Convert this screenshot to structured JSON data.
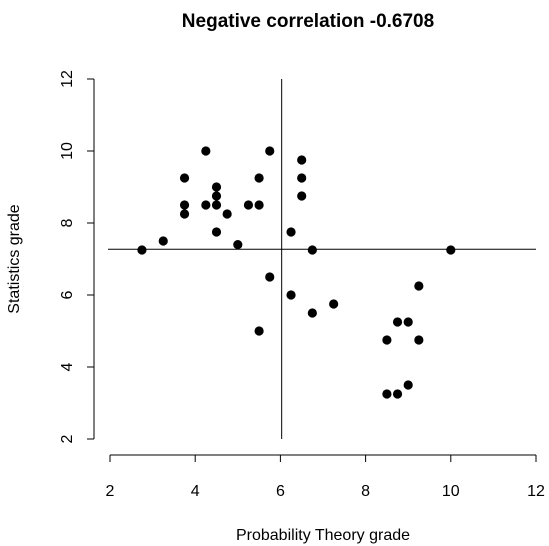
{
  "chart_data": {
    "type": "scatter",
    "title": "Negative correlation -0.6708",
    "xlabel": "Probability Theory grade",
    "ylabel": "Statistics grade",
    "xlim": [
      2,
      12
    ],
    "ylim": [
      2,
      12
    ],
    "xticks": [
      "2",
      "4",
      "6",
      "8",
      "10",
      "12"
    ],
    "yticks": [
      "2",
      "4",
      "6",
      "8",
      "10",
      "12"
    ],
    "reference_lines": {
      "x_mean": 6.03,
      "y_mean": 7.27
    },
    "marker_color": "#000000",
    "grid": false,
    "points": [
      {
        "x": 2.75,
        "y": 7.25
      },
      {
        "x": 3.25,
        "y": 7.5
      },
      {
        "x": 3.75,
        "y": 9.25
      },
      {
        "x": 3.75,
        "y": 8.5
      },
      {
        "x": 3.75,
        "y": 8.25
      },
      {
        "x": 4.25,
        "y": 10.0
      },
      {
        "x": 4.25,
        "y": 8.5
      },
      {
        "x": 4.5,
        "y": 9.0
      },
      {
        "x": 4.5,
        "y": 8.75
      },
      {
        "x": 4.5,
        "y": 8.5
      },
      {
        "x": 4.5,
        "y": 7.75
      },
      {
        "x": 4.75,
        "y": 8.25
      },
      {
        "x": 5.0,
        "y": 7.4
      },
      {
        "x": 5.25,
        "y": 8.5
      },
      {
        "x": 5.5,
        "y": 9.25
      },
      {
        "x": 5.5,
        "y": 8.5
      },
      {
        "x": 5.5,
        "y": 5.0
      },
      {
        "x": 5.75,
        "y": 10.0
      },
      {
        "x": 5.75,
        "y": 6.5
      },
      {
        "x": 6.25,
        "y": 7.75
      },
      {
        "x": 6.25,
        "y": 6.0
      },
      {
        "x": 6.5,
        "y": 9.75
      },
      {
        "x": 6.5,
        "y": 9.25
      },
      {
        "x": 6.5,
        "y": 8.75
      },
      {
        "x": 6.75,
        "y": 7.25
      },
      {
        "x": 6.75,
        "y": 5.5
      },
      {
        "x": 7.25,
        "y": 5.75
      },
      {
        "x": 8.5,
        "y": 4.75
      },
      {
        "x": 8.5,
        "y": 3.25
      },
      {
        "x": 8.75,
        "y": 5.25
      },
      {
        "x": 8.75,
        "y": 3.25
      },
      {
        "x": 9.0,
        "y": 5.25
      },
      {
        "x": 9.0,
        "y": 3.5
      },
      {
        "x": 9.25,
        "y": 6.25
      },
      {
        "x": 9.25,
        "y": 4.75
      },
      {
        "x": 10.0,
        "y": 7.25
      }
    ]
  }
}
